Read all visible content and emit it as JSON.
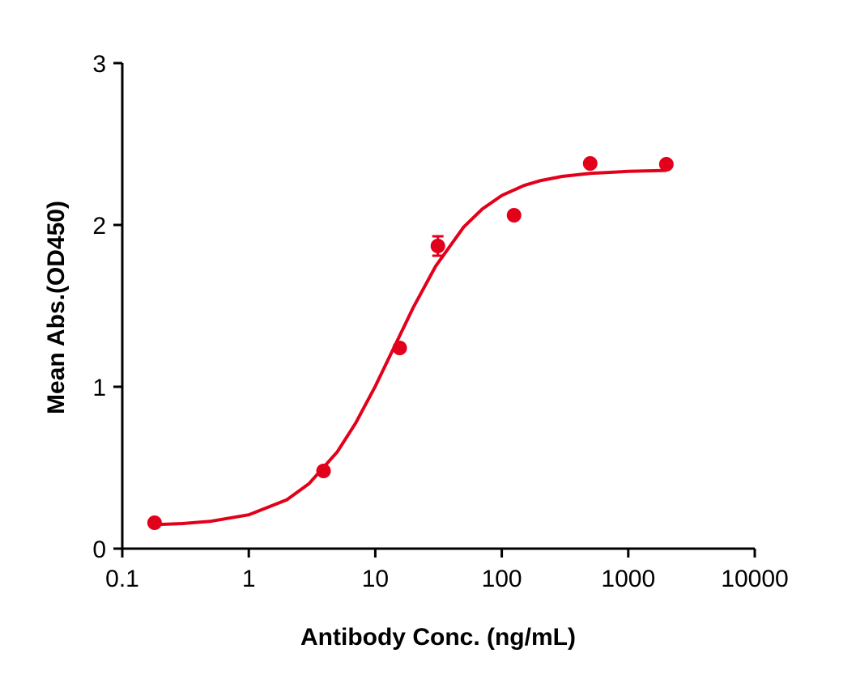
{
  "chart_data": {
    "type": "scatter",
    "xlabel": "Antibody Conc. (ng/mL)",
    "ylabel": "Mean Abs.(OD450)",
    "xscale": "log",
    "xlim": [
      0.1,
      10000
    ],
    "xticks": [
      0.1,
      1,
      10,
      100,
      1000,
      10000
    ],
    "ylim": [
      0,
      3
    ],
    "yticks": [
      0,
      1,
      2,
      3
    ],
    "series": [
      {
        "style": "points",
        "color": "#e2001a",
        "x": [
          0.18,
          3.9,
          15.6,
          31.25,
          125,
          500,
          2000
        ],
        "values": [
          0.16,
          0.48,
          1.24,
          1.87,
          2.06,
          2.38,
          2.375
        ],
        "errors": [
          null,
          null,
          null,
          0.06,
          null,
          null,
          null
        ]
      },
      {
        "style": "line",
        "color": "#e2001a",
        "x": [
          0.18,
          0.3,
          0.5,
          1,
          2,
          3,
          5,
          7,
          10,
          14,
          20,
          30,
          50,
          70,
          100,
          150,
          200,
          300,
          500,
          1000,
          2000
        ],
        "values": [
          0.148,
          0.155,
          0.169,
          0.209,
          0.302,
          0.402,
          0.597,
          0.776,
          1.003,
          1.24,
          1.491,
          1.745,
          1.987,
          2.098,
          2.182,
          2.244,
          2.273,
          2.3,
          2.319,
          2.331,
          2.337
        ]
      }
    ]
  }
}
